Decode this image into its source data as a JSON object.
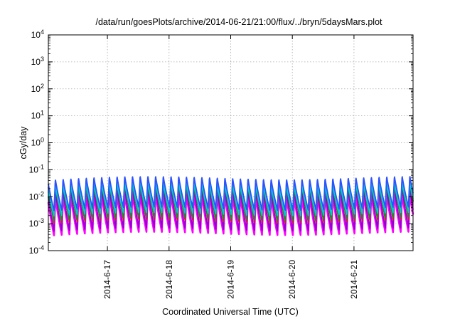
{
  "chart_data": {
    "type": "line",
    "title": "/data/run/goesPlots/archive/2014-06-21/21:00/flux/../bryn/5daysMars.plot",
    "xlabel": "Coordinated Universal Time (UTC)",
    "ylabel": "cGy/day",
    "yscale": "log",
    "ylim": [
      0.0001,
      10000
    ],
    "y_ticks": [
      {
        "base": "10",
        "exp": "-4",
        "value": 0.0001
      },
      {
        "base": "10",
        "exp": "-3",
        "value": 0.001
      },
      {
        "base": "10",
        "exp": "-2",
        "value": 0.01
      },
      {
        "base": "10",
        "exp": "-1",
        "value": 0.1
      },
      {
        "base": "10",
        "exp": "0",
        "value": 1
      },
      {
        "base": "10",
        "exp": "1",
        "value": 10
      },
      {
        "base": "10",
        "exp": "2",
        "value": 100
      },
      {
        "base": "10",
        "exp": "3",
        "value": 1000
      },
      {
        "base": "10",
        "exp": "4",
        "value": 10000
      }
    ],
    "xlim": [
      "2014-06-16 01:00",
      "2014-06-21 23:00"
    ],
    "x_ticks": [
      "2014-6-17",
      "2014-6-18",
      "2014-6-19",
      "2014-6-20",
      "2014-6-21"
    ],
    "grid": true,
    "cycle_hours": 3,
    "series": [
      {
        "color": "#ff00ff",
        "peak": 0.012,
        "trough": 0.00042
      },
      {
        "color": "#9400d3",
        "peak": 0.02,
        "trough": 0.0006
      },
      {
        "color": "#cc2222",
        "peak": 0.045,
        "trough": 0.0012
      },
      {
        "color": "#228b22",
        "peak": 0.028,
        "trough": 0.0015
      },
      {
        "color": "#00cccc",
        "peak": 0.03,
        "trough": 0.0022
      },
      {
        "color": "#2a52ff",
        "peak": 0.052,
        "trough": 0.0035
      }
    ]
  }
}
